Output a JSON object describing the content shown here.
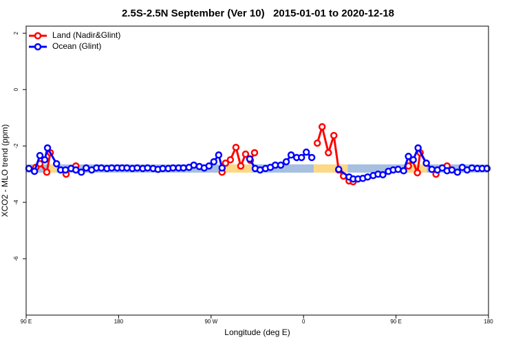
{
  "chart_data": {
    "type": "line",
    "title": "2.5S-2.5N September (Ver 10)   2015-01-01 to 2020-12-18",
    "xlabel": "Longitude (deg E)",
    "ylabel": "XCO2 - MLO trend (ppm)",
    "xlim": [
      90,
      540
    ],
    "ylim": [
      -8,
      2.25
    ],
    "xticks": [
      {
        "value": 90,
        "label": "90 E"
      },
      {
        "value": 180,
        "label": "180"
      },
      {
        "value": 270,
        "label": "90 W"
      },
      {
        "value": 360,
        "label": "0"
      },
      {
        "value": 450,
        "label": "90 E"
      },
      {
        "value": 540,
        "label": "180"
      }
    ],
    "yticks": [
      -6,
      -4,
      -2,
      0,
      2
    ],
    "legend": "top-left",
    "background_bands": {
      "level": -2.8,
      "segments": [
        {
          "from": 90,
          "to": 111.5,
          "color": "#a7bfe0"
        },
        {
          "from": 111.5,
          "to": 119.6,
          "color": "#fdd887"
        },
        {
          "from": 119.6,
          "to": 278,
          "color": "#a7bfe0"
        },
        {
          "from": 278,
          "to": 310,
          "color": "#fdd887"
        },
        {
          "from": 310,
          "to": 370,
          "color": "#a7bfe0"
        },
        {
          "from": 370,
          "to": 403,
          "color": "#fdd887"
        },
        {
          "from": 403,
          "to": 460,
          "color": "#a7bfe0"
        },
        {
          "from": 460,
          "to": 480,
          "color": "#fdd887"
        },
        {
          "from": 480,
          "to": 540,
          "color": "#a7bfe0"
        }
      ]
    },
    "series": [
      {
        "name": "Land (Nadir&Glint)",
        "color": "#ff0000",
        "x": [
          99.4,
          103.4,
          110.1,
          113.5,
          120,
          128.9,
          134,
          138.4,
          200,
          280.7,
          284.1,
          288.8,
          294.2,
          298.9,
          303.6,
          308.3,
          312.3,
          340,
          373.4,
          378.1,
          384.2,
          389.5,
          394.2,
          398.9,
          404.3,
          408.3,
          430,
          462.1,
          466.1,
          470.8,
          473.5,
          479.5,
          488.9,
          494,
          499.7
        ],
        "values": [
          -2.76,
          -2.63,
          -2.93,
          -2.24,
          null,
          -3.0,
          null,
          -2.71,
          null,
          -2.93,
          -2.61,
          -2.49,
          -2.05,
          -2.71,
          -2.29,
          -2.51,
          -2.24,
          null,
          -1.9,
          -1.32,
          -2.24,
          -1.63,
          -2.85,
          -3.07,
          -3.24,
          -3.27,
          null,
          -2.71,
          -2.51,
          -2.95,
          -2.24,
          -2.61,
          -3.0,
          null,
          -2.71
        ]
      },
      {
        "name": "Ocean (Glint)",
        "color": "#0000ff",
        "x": [
          92.7,
          98.1,
          103.4,
          108.1,
          110.8,
          119.6,
          123.6,
          128.3,
          133.7,
          138.4,
          143.7,
          148.4,
          153.8,
          158.5,
          163.2,
          168.6,
          173.3,
          178.7,
          183.4,
          188.1,
          193.4,
          198.1,
          203.5,
          208.2,
          213.6,
          218.3,
          223.0,
          228.3,
          233.0,
          238.4,
          243.1,
          248.5,
          253.2,
          258.6,
          263.3,
          268.0,
          272.7,
          277.4,
          280.7,
          294,
          307.6,
          313.0,
          317.7,
          323.0,
          327.7,
          332.5,
          337.8,
          343.2,
          347.9,
          353.3,
          358.0,
          362.7,
          368.0,
          381,
          394.2,
          404.3,
          408.3,
          413.0,
          417.7,
          422.4,
          427.8,
          432.5,
          437.2,
          442.6,
          447.3,
          452.0,
          457.4,
          462.1,
          466.8,
          471.5,
          479.5,
          484.9,
          490.3,
          495.0,
          499.7,
          504.4,
          509.8,
          514.5,
          519.2,
          523.9,
          529.2,
          533.9,
          538.6
        ],
        "values": [
          -2.8,
          -2.9,
          -2.34,
          -2.49,
          -2.07,
          -2.63,
          -2.85,
          -2.85,
          -2.8,
          -2.85,
          -2.93,
          -2.78,
          -2.85,
          -2.78,
          -2.78,
          -2.8,
          -2.78,
          -2.78,
          -2.78,
          -2.78,
          -2.8,
          -2.78,
          -2.8,
          -2.78,
          -2.8,
          -2.83,
          -2.8,
          -2.8,
          -2.78,
          -2.78,
          -2.78,
          -2.76,
          -2.68,
          -2.73,
          -2.78,
          -2.71,
          -2.56,
          -2.32,
          -2.78,
          null,
          -2.46,
          -2.8,
          -2.85,
          -2.8,
          -2.76,
          -2.68,
          -2.68,
          -2.56,
          -2.32,
          -2.41,
          -2.41,
          -2.22,
          -2.41,
          null,
          -2.83,
          -3.1,
          -3.17,
          -3.17,
          -3.15,
          -3.1,
          -3.05,
          -3.0,
          -3.02,
          -2.9,
          -2.85,
          -2.83,
          -2.88,
          -2.37,
          -2.49,
          -2.07,
          -2.61,
          -2.83,
          -2.85,
          -2.78,
          -2.88,
          -2.85,
          -2.93,
          -2.76,
          -2.85,
          -2.78,
          -2.8,
          -2.8,
          -2.8
        ]
      }
    ]
  }
}
